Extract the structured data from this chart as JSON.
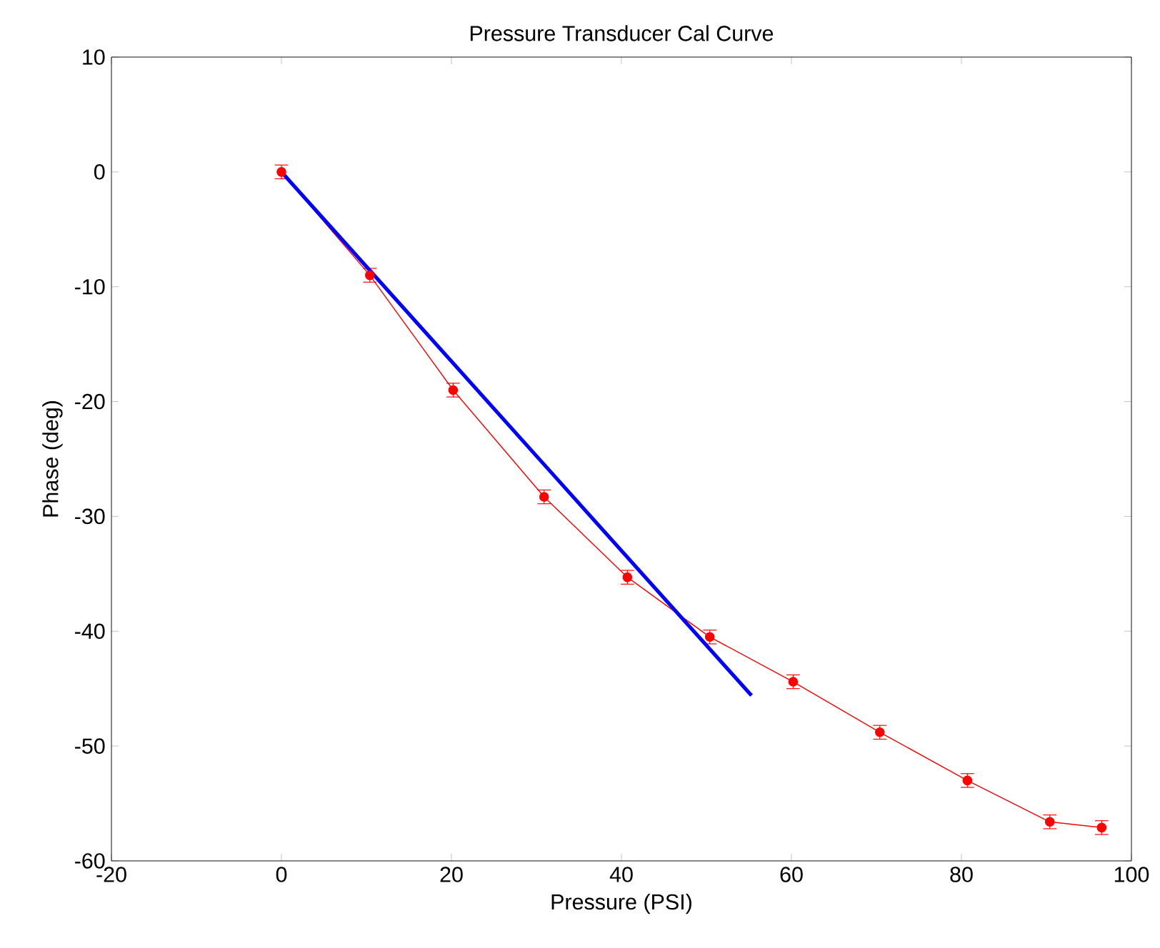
{
  "chart_data": {
    "type": "line",
    "title": "Pressure Transducer Cal Curve",
    "xlabel": "Pressure (PSI)",
    "ylabel": "Phase (deg)",
    "xlim": [
      -20,
      100
    ],
    "ylim": [
      -60,
      10
    ],
    "xticks": [
      -20,
      0,
      20,
      40,
      60,
      80,
      100
    ],
    "yticks": [
      -60,
      -50,
      -40,
      -30,
      -20,
      -10,
      0,
      10
    ],
    "grid": false,
    "legend": false,
    "series": [
      {
        "color": "#ff0000",
        "marker": "circle",
        "x": [
          0,
          10.4,
          20.2,
          30.9,
          40.7,
          50.4,
          60.2,
          70.4,
          80.7,
          90.4,
          96.5
        ],
        "values": [
          0,
          -9.0,
          -19.0,
          -28.3,
          -35.3,
          -40.5,
          -44.4,
          -48.8,
          -53.0,
          -56.6,
          -57.1
        ],
        "errors": [
          0.6,
          0.6,
          0.6,
          0.6,
          0.6,
          0.6,
          0.6,
          0.6,
          0.6,
          0.6,
          0.6
        ]
      },
      {
        "color": "#0000ff",
        "marker": "none",
        "x": [
          0,
          55.3
        ],
        "values": [
          0,
          -45.6
        ]
      }
    ]
  }
}
